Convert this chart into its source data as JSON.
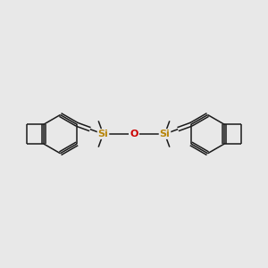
{
  "background_color": "#e8e8e8",
  "bond_color": "#1a1a1a",
  "Si_color": "#b8860b",
  "O_color": "#cc0000",
  "figsize": [
    3.0,
    3.0
  ],
  "dpi": 100,
  "xlim": [
    0,
    10
  ],
  "ylim": [
    3.5,
    6.5
  ]
}
